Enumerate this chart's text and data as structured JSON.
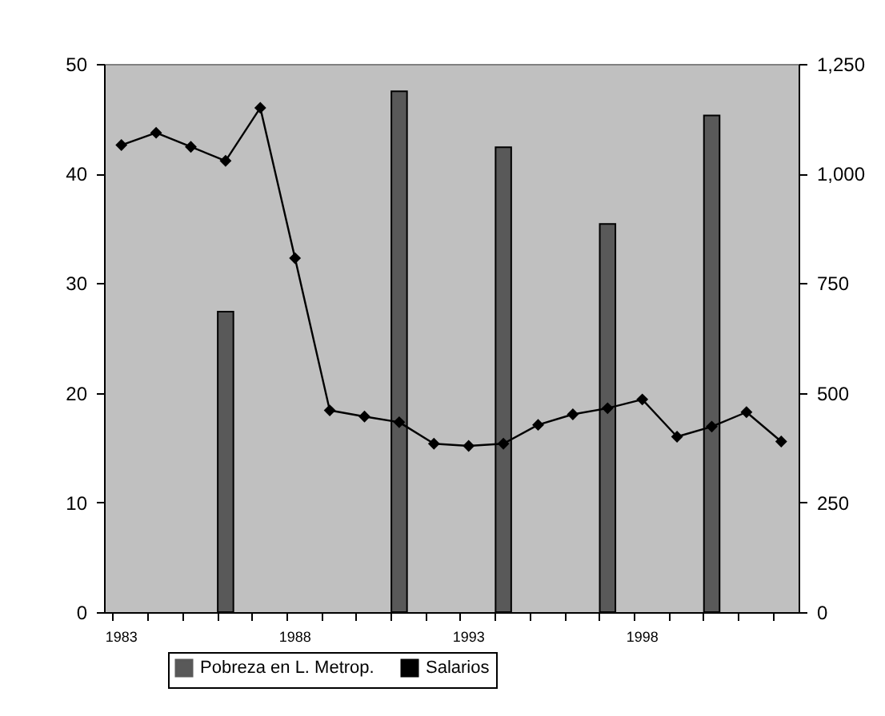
{
  "chart_data": {
    "type": "bar",
    "categories": [
      "1983",
      null,
      null,
      null,
      null,
      "1988",
      null,
      null,
      null,
      null,
      "1993",
      null,
      null,
      null,
      null,
      "1998",
      null,
      null,
      null,
      null
    ],
    "series": [
      {
        "name": "Pobreza en L. Metrop.",
        "color": "#595959",
        "values": [
          null,
          null,
          null,
          27.4,
          null,
          null,
          null,
          null,
          47.5,
          null,
          null,
          42.4,
          null,
          null,
          35.4,
          null,
          null,
          45.3,
          null,
          null
        ]
      },
      {
        "name": "Salarios",
        "type": "line",
        "axis": "y2",
        "color": "#000000",
        "marker": "diamond",
        "values": [
          1065,
          1093,
          1061,
          1029,
          1150,
          807,
          460,
          446,
          433,
          384,
          379,
          384,
          427,
          451,
          465,
          485,
          400,
          423,
          456,
          389
        ]
      }
    ],
    "ylim": [
      0,
      50
    ],
    "yticks": [
      0,
      10,
      20,
      30,
      40,
      50
    ],
    "y2lim": [
      0,
      1250
    ],
    "y2ticks": [
      0,
      {
        "value": 250,
        "label": "250"
      },
      {
        "value": 500,
        "label": "500"
      },
      {
        "value": 750,
        "label": "750"
      },
      {
        "value": 1000,
        "label": "1,000"
      },
      {
        "value": 1250,
        "label": "1,250"
      }
    ],
    "grid": false,
    "legend": "bottom"
  }
}
